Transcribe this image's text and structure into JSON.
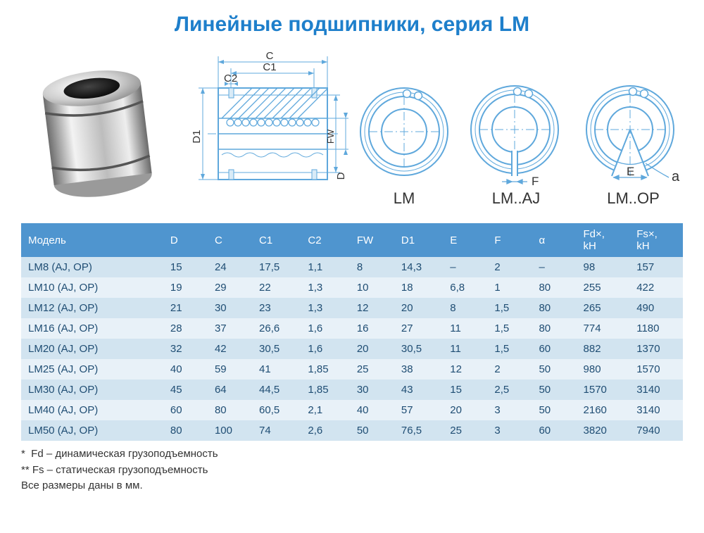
{
  "title": "Линейные подшипники, серия LM",
  "title_color": "#1e7fcb",
  "colors": {
    "header_bg": "#4f95cf",
    "row_even": "#d2e4f0",
    "row_odd": "#e8f1f8",
    "cell_text": "#1f4d73",
    "diagram_stroke": "#5fa8dc",
    "diagram_fill": "#d9ebf7"
  },
  "section_diagram": {
    "labels": {
      "C": "C",
      "C1": "C1",
      "C2": "C2",
      "D1": "D1",
      "FW": "FW",
      "D": "D"
    }
  },
  "rings": [
    {
      "caption": "LM",
      "has_slit": false,
      "has_cutout": false
    },
    {
      "caption": "LM..AJ",
      "has_slit": true,
      "has_cutout": false,
      "slit_label": "F"
    },
    {
      "caption": "LM..OP",
      "has_slit": false,
      "has_cutout": true,
      "cut_label_e": "E",
      "cut_label_a": "a"
    }
  ],
  "table": {
    "columns": [
      "Модель",
      "D",
      "C",
      "C1",
      "C2",
      "FW",
      "D1",
      "E",
      "F",
      "α",
      "Fd×, kH",
      "Fs×, kH"
    ],
    "col_widths": [
      "160px",
      "50px",
      "50px",
      "55px",
      "55px",
      "50px",
      "55px",
      "50px",
      "50px",
      "50px",
      "60px",
      "60px"
    ],
    "rows": [
      [
        "LM8 (AJ, OP)",
        "15",
        "24",
        "17,5",
        "1,1",
        "8",
        "14,3",
        "–",
        "2",
        "–",
        "98",
        "157"
      ],
      [
        "LM10 (AJ, OP)",
        "19",
        "29",
        "22",
        "1,3",
        "10",
        "18",
        "6,8",
        "1",
        "80",
        "255",
        "422"
      ],
      [
        "LM12 (AJ, OP)",
        "21",
        "30",
        "23",
        "1,3",
        "12",
        "20",
        "8",
        "1,5",
        "80",
        "265",
        "490"
      ],
      [
        "LM16 (AJ, OP)",
        "28",
        "37",
        "26,6",
        "1,6",
        "16",
        "27",
        "11",
        "1,5",
        "80",
        "774",
        "1180"
      ],
      [
        "LM20 (AJ, OP)",
        "32",
        "42",
        "30,5",
        "1,6",
        "20",
        "30,5",
        "11",
        "1,5",
        "60",
        "882",
        "1370"
      ],
      [
        "LM25 (AJ, OP)",
        "40",
        "59",
        "41",
        "1,85",
        "25",
        "38",
        "12",
        "2",
        "50",
        "980",
        "1570"
      ],
      [
        "LM30 (AJ, OP)",
        "45",
        "64",
        "44,5",
        "1,85",
        "30",
        "43",
        "15",
        "2,5",
        "50",
        "1570",
        "3140"
      ],
      [
        "LM40 (AJ, OP)",
        "60",
        "80",
        "60,5",
        "2,1",
        "40",
        "57",
        "20",
        "3",
        "50",
        "2160",
        "3140"
      ],
      [
        "LM50 (AJ, OP)",
        "80",
        "100",
        "74",
        "2,6",
        "50",
        "76,5",
        "25",
        "3",
        "60",
        "3820",
        "7940"
      ]
    ]
  },
  "notes": [
    "*  Fd – динамическая грузоподъемность",
    "** Fs – статическая грузоподъемность",
    "Все размеры даны в мм."
  ]
}
